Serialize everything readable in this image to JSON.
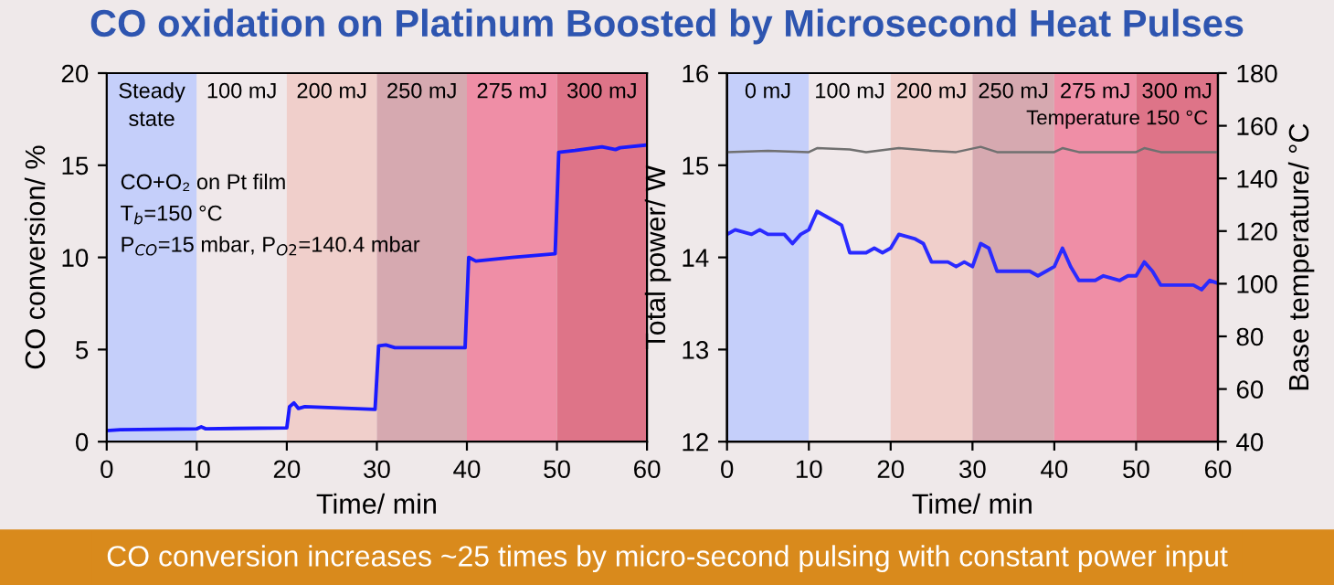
{
  "chart_data": [
    {
      "type": "line",
      "title": "CO oxidation on Platinum Boosted by Microsecond Heat Pulses",
      "xlabel": "Time/ min",
      "ylabel": "CO conversion/ %",
      "xlim": [
        0,
        60
      ],
      "xticks": [
        0,
        10,
        20,
        30,
        40,
        50,
        60
      ],
      "ylim": [
        0,
        20
      ],
      "yticks": [
        0,
        5,
        10,
        15,
        20
      ],
      "grid": false,
      "legend": false,
      "series": [
        {
          "color": "#1a1aff",
          "x": [
            0,
            1.5,
            10,
            10.5,
            11,
            20,
            20.3,
            20.8,
            21.3,
            22,
            29.8,
            30.2,
            31,
            32,
            39.8,
            40.2,
            41,
            45,
            49.8,
            50.2,
            52,
            55,
            56.5,
            57,
            60
          ],
          "values": [
            0.6,
            0.65,
            0.7,
            0.8,
            0.7,
            0.75,
            1.9,
            2.1,
            1.8,
            1.9,
            1.75,
            5.2,
            5.25,
            5.1,
            5.1,
            10.0,
            9.8,
            10.0,
            10.2,
            15.7,
            15.8,
            16.0,
            15.85,
            15.95,
            16.1
          ]
        }
      ],
      "bands": [
        {
          "axis": "x",
          "from": 0,
          "to": 10,
          "label": "Steady\nstate",
          "color": "#c5cffa"
        },
        {
          "axis": "x",
          "from": 10,
          "to": 20,
          "label": "100 mJ",
          "color": "#f0e8ea"
        },
        {
          "axis": "x",
          "from": 20,
          "to": 30,
          "label": "200 mJ",
          "color": "#f0cfcb"
        },
        {
          "axis": "x",
          "from": 30,
          "to": 40,
          "label": "250 mJ",
          "color": "#d6a9b0"
        },
        {
          "axis": "x",
          "from": 40,
          "to": 50,
          "label": "275 mJ",
          "color": "#ef8ea6"
        },
        {
          "axis": "x",
          "from": 50,
          "to": 60,
          "label": "300 mJ",
          "color": "#de7488"
        }
      ],
      "annotations": [
        "CO+O₂ on Pt film",
        "T$_{b}$=150 °C",
        "P$_{CO}$=15 mbar, P$_{O2}$=140.4 mbar"
      ]
    },
    {
      "type": "line",
      "xlabel": "Time/ min",
      "ylabel": "Total power/ W",
      "y2label": "Base temperature/ °C",
      "xlim": [
        0,
        60
      ],
      "xticks": [
        0,
        10,
        20,
        30,
        40,
        50,
        60
      ],
      "ylim": [
        12,
        16
      ],
      "yticks": [
        12,
        13,
        14,
        15,
        16
      ],
      "y2lim": [
        40,
        180
      ],
      "y2ticks": [
        40,
        60,
        80,
        100,
        120,
        140,
        160,
        180
      ],
      "grid": false,
      "legend": false,
      "series": [
        {
          "color": "#2a2aff",
          "x": [
            0,
            1,
            3,
            4,
            5,
            7,
            8,
            9,
            10,
            11,
            12,
            13,
            14,
            15,
            17,
            18,
            19,
            20,
            21,
            23,
            24,
            25,
            27,
            28,
            29,
            30,
            31,
            32,
            33,
            35,
            37,
            38,
            39,
            40,
            41,
            42,
            43,
            45,
            46,
            48,
            49,
            50,
            51,
            52,
            53,
            55,
            57,
            58,
            59,
            60
          ],
          "values": [
            14.25,
            14.3,
            14.25,
            14.3,
            14.25,
            14.25,
            14.15,
            14.25,
            14.3,
            14.5,
            14.45,
            14.4,
            14.35,
            14.05,
            14.05,
            14.1,
            14.05,
            14.1,
            14.25,
            14.2,
            14.15,
            13.95,
            13.95,
            13.9,
            13.95,
            13.9,
            14.15,
            14.1,
            13.85,
            13.85,
            13.85,
            13.8,
            13.85,
            13.9,
            14.1,
            13.9,
            13.75,
            13.75,
            13.8,
            13.75,
            13.8,
            13.8,
            13.95,
            13.85,
            13.7,
            13.7,
            13.7,
            13.65,
            13.75,
            13.72
          ]
        },
        {
          "color": "#707070",
          "axis": "y2",
          "x": [
            0,
            5,
            10,
            11,
            15,
            17,
            21,
            25,
            28,
            31,
            33,
            40,
            41,
            43,
            50,
            51,
            53,
            60
          ],
          "values": [
            150,
            150.5,
            150,
            151.5,
            151,
            150,
            151.5,
            150.5,
            150,
            152,
            150,
            150,
            151.5,
            150,
            150,
            151.5,
            150,
            150
          ]
        }
      ],
      "bands": [
        {
          "axis": "x",
          "from": 0,
          "to": 10,
          "label": "0 mJ",
          "color": "#c5cffa"
        },
        {
          "axis": "x",
          "from": 10,
          "to": 20,
          "label": "100 mJ",
          "color": "#f0e8ea"
        },
        {
          "axis": "x",
          "from": 20,
          "to": 30,
          "label": "200 mJ",
          "color": "#f0cfcb"
        },
        {
          "axis": "x",
          "from": 30,
          "to": 40,
          "label": "250 mJ",
          "color": "#d6a9b0"
        },
        {
          "axis": "x",
          "from": 40,
          "to": 50,
          "label": "275 mJ",
          "color": "#ef8ea6"
        },
        {
          "axis": "x",
          "from": 50,
          "to": 60,
          "label": "300 mJ",
          "color": "#de7488"
        }
      ],
      "annotations": [
        "Temperature 150 °C",
        "CO conversion increases ~25 times by micro-second pulsing with constant power input"
      ]
    }
  ]
}
